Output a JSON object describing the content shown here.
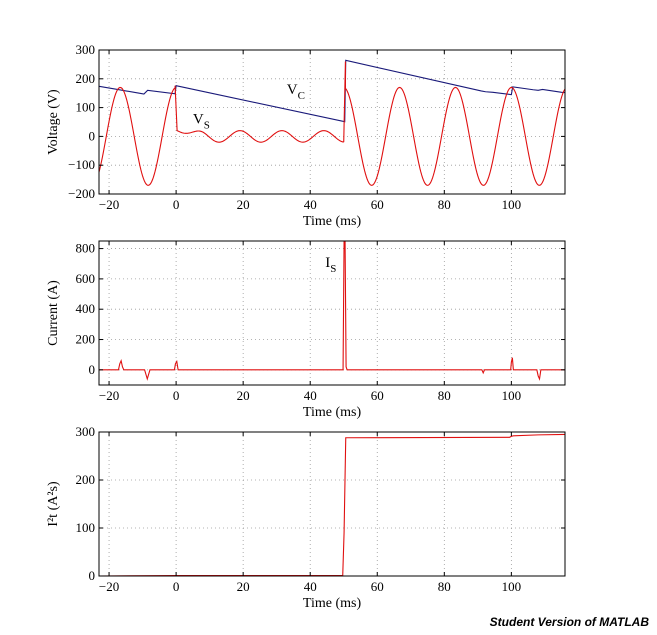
{
  "watermark": "Student Version of MATLAB",
  "colors": {
    "red": "#e01010",
    "blue": "#1a1a7a",
    "grid": "#9a9a9a"
  },
  "chart_data": [
    {
      "type": "line",
      "xlabel": "Time (ms)",
      "ylabel": "Voltage (V)",
      "xlim": [
        -23,
        116
      ],
      "ylim": [
        -200,
        300
      ],
      "xticks": [
        -20,
        0,
        20,
        40,
        60,
        80,
        100
      ],
      "yticks": [
        -200,
        -100,
        0,
        100,
        200,
        300
      ],
      "xtick_labels": [
        "−20",
        "0",
        "20",
        "40",
        "60",
        "80",
        "100"
      ],
      "ytick_labels": [
        "−200",
        "−100",
        "0",
        "100",
        "200",
        "300"
      ],
      "grid": true,
      "series": [
        {
          "name": "VC",
          "color": "#1a1a7a",
          "x": [
            -23,
            -17.5,
            -11,
            -9.6,
            -8.5,
            -0.3,
            0,
            50.3,
            50.6,
            91,
            92.3,
            94.5,
            100,
            100.4,
            106.5,
            108,
            109.3,
            115,
            116
          ],
          "y": [
            174,
            163,
            150,
            147,
            160,
            148,
            176,
            51,
            264,
            158,
            155,
            153,
            145,
            172,
            162,
            160,
            163,
            153,
            152
          ]
        },
        {
          "name": "VS",
          "color": "#e01010",
          "segments": [
            {
              "kind": "sine",
              "x0": -23,
              "x1": -0.3,
              "amp": 170,
              "period": 16.667,
              "phase_zero": 0
            },
            {
              "kind": "jump",
              "x": [
                -0.3,
                0.3
              ],
              "y": [
                176,
                20
              ]
            },
            {
              "kind": "decay",
              "x0": 0.3,
              "x1": 50,
              "y0": 20,
              "y1": -20,
              "amp": 20,
              "period": 12.5
            },
            {
              "kind": "jump",
              "x": [
                50,
                50.5
              ],
              "y": [
                -20,
                260
              ]
            },
            {
              "kind": "sine",
              "x0": 50.5,
              "x1": 116,
              "amp": 170,
              "period": 16.667,
              "phase_zero": 0
            }
          ]
        }
      ],
      "annotations": [
        {
          "text": "V",
          "sub": "C",
          "x": 33,
          "y": 148
        },
        {
          "text": "V",
          "sub": "S",
          "x": 5,
          "y": 45
        }
      ]
    },
    {
      "type": "line",
      "xlabel": "Time (ms)",
      "ylabel": "Current (A)",
      "xlim": [
        -23,
        116
      ],
      "ylim": [
        -100,
        850
      ],
      "xticks": [
        -20,
        0,
        20,
        40,
        60,
        80,
        100
      ],
      "yticks": [
        0,
        200,
        400,
        600,
        800
      ],
      "xtick_labels": [
        "−20",
        "0",
        "20",
        "40",
        "60",
        "80",
        "100"
      ],
      "ytick_labels": [
        "0",
        "200",
        "400",
        "600",
        "800"
      ],
      "grid": true,
      "series": [
        {
          "name": "IS",
          "color": "#e01010",
          "x": [
            -23,
            -17.2,
            -16.8,
            -16.4,
            -16,
            -15.6,
            -9.4,
            -9,
            -8.6,
            -8.2,
            -7.8,
            -0.5,
            -0.2,
            0.2,
            0.6,
            49.8,
            50.1,
            50.4,
            50.7,
            51,
            91.2,
            91.6,
            92,
            99.8,
            100,
            100.3,
            100.6,
            107.6,
            108,
            108.4,
            108.8,
            116
          ],
          "y": [
            0,
            0,
            40,
            60,
            20,
            0,
            0,
            -30,
            -60,
            -30,
            0,
            0,
            40,
            55,
            0,
            0,
            850,
            850,
            20,
            0,
            0,
            -20,
            0,
            0,
            50,
            80,
            0,
            0,
            -40,
            -60,
            0,
            0
          ]
        }
      ],
      "annotations": [
        {
          "text": "I",
          "sub": "S",
          "x": 44.5,
          "y": 680
        }
      ]
    },
    {
      "type": "line",
      "xlabel": "Time (ms)",
      "ylabel": "I²t (A²s)",
      "xlim": [
        -23,
        116
      ],
      "ylim": [
        0,
        300
      ],
      "xticks": [
        -20,
        0,
        20,
        40,
        60,
        80,
        100
      ],
      "yticks": [
        0,
        100,
        200,
        300
      ],
      "xtick_labels": [
        "−20",
        "0",
        "20",
        "40",
        "60",
        "80",
        "100"
      ],
      "ytick_labels": [
        "0",
        "100",
        "200",
        "300"
      ],
      "grid": true,
      "series": [
        {
          "name": "I2t",
          "color": "#e01010",
          "x": [
            -23,
            0,
            49.7,
            50.1,
            50.6,
            99.5,
            100,
            100.6,
            108,
            116
          ],
          "y": [
            0,
            1,
            1,
            90,
            288,
            289,
            291,
            292,
            294,
            295
          ]
        }
      ],
      "annotations": []
    }
  ]
}
